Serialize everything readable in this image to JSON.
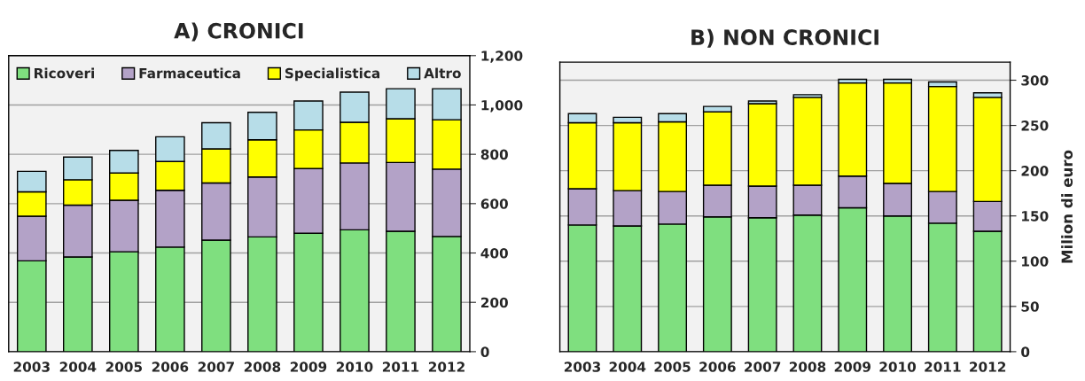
{
  "chart_data": [
    {
      "type": "bar",
      "title": "A) CRONICI",
      "stacked": true,
      "categories": [
        "2003",
        "2004",
        "2005",
        "2006",
        "2007",
        "2008",
        "2009",
        "2010",
        "2011",
        "2012"
      ],
      "series": [
        {
          "name": "Ricoveri",
          "color": "#7fdf7f",
          "values": [
            368,
            384,
            405,
            424,
            452,
            465,
            480,
            494,
            488,
            467
          ]
        },
        {
          "name": "Farmaceutica",
          "color": "#b3a2c7",
          "values": [
            181,
            210,
            209,
            230,
            232,
            243,
            262,
            271,
            279,
            273
          ]
        },
        {
          "name": "Specialistica",
          "color": "#ffff00",
          "values": [
            99,
            103,
            110,
            117,
            138,
            151,
            157,
            165,
            177,
            200
          ]
        },
        {
          "name": "Altro",
          "color": "#b7dde8",
          "values": [
            83,
            92,
            92,
            100,
            106,
            111,
            117,
            122,
            122,
            126
          ]
        }
      ],
      "ylim": [
        0,
        1200
      ],
      "yticks": [
        {
          "value": 0,
          "label": "0"
        },
        {
          "value": 200,
          "label": "200"
        },
        {
          "value": 400,
          "label": "400"
        },
        {
          "value": 600,
          "label": "600"
        },
        {
          "value": 800,
          "label": "800"
        },
        {
          "value": 1000,
          "label": "1,000"
        },
        {
          "value": 1200,
          "label": "1,200"
        }
      ],
      "grid": "y",
      "legend": "top"
    },
    {
      "type": "bar",
      "title": "B) NON CRONICI",
      "ylabel": "Milion di euro",
      "stacked": true,
      "categories": [
        "2003",
        "2004",
        "2005",
        "2006",
        "2007",
        "2008",
        "2009",
        "2010",
        "2011",
        "2012"
      ],
      "series": [
        {
          "color": "#7fdf7f",
          "values": [
            140,
            139,
            141,
            149,
            148,
            151,
            159,
            150,
            142,
            133
          ]
        },
        {
          "color": "#b3a2c7",
          "values": [
            40,
            39,
            36,
            35,
            35,
            33,
            35,
            36,
            35,
            33
          ]
        },
        {
          "color": "#ffff00",
          "values": [
            73,
            75,
            77,
            81,
            91,
            97,
            103,
            111,
            116,
            115
          ]
        },
        {
          "color": "#b7dde8",
          "values": [
            10,
            6,
            9,
            6,
            3,
            3,
            4,
            4,
            5,
            5
          ]
        }
      ],
      "ylim": [
        0,
        320
      ],
      "yticks": [
        0,
        50,
        100,
        150,
        200,
        250,
        300
      ],
      "grid": "y",
      "legend": false
    }
  ]
}
